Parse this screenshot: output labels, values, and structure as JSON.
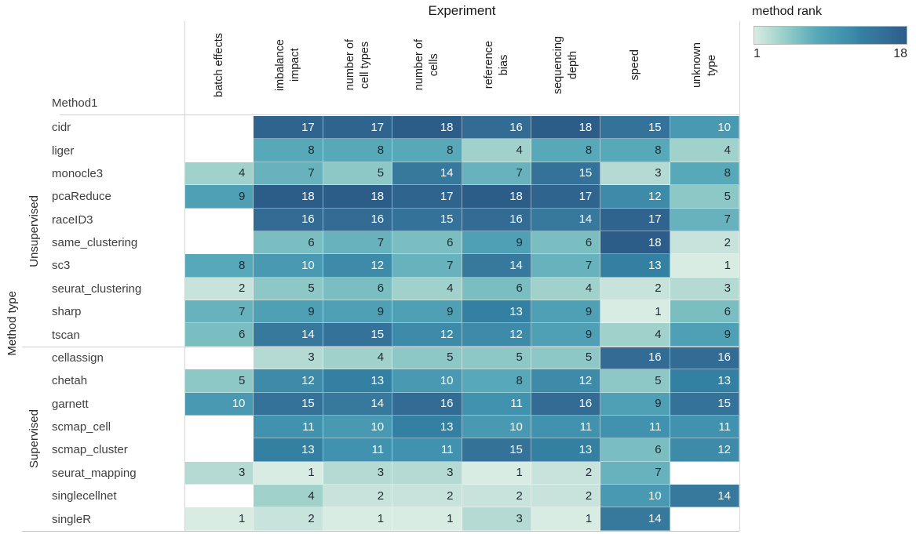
{
  "title": "Experiment",
  "axis": {
    "row_header": "Method1",
    "row_axis_title": "Method type"
  },
  "legend": {
    "title": "method rank",
    "min_label": "1",
    "max_label": "18"
  },
  "colors": {
    "palette": [
      "#d8ece3",
      "#c7e3db",
      "#b4dad3",
      "#a0d1cb",
      "#8dc8c6",
      "#7abec1",
      "#67b2bd",
      "#57a8b8",
      "#4fa0b4",
      "#4899b1",
      "#4192ae",
      "#3d8aa9",
      "#3480a2",
      "#36799c",
      "#357299",
      "#326b94",
      "#2f648e",
      "#2c5d89"
    ],
    "blank_cell": "#ffffff",
    "text_dark": "#1f2a33",
    "text_light": "#fafdfd",
    "light_text_threshold": 10,
    "grid_line": "#cfcfcf"
  },
  "chart_data": {
    "type": "heatmap",
    "title": "Experiment",
    "legend_title": "method rank",
    "value_range": [
      1,
      18
    ],
    "legend_ticks": [
      "1",
      "18"
    ],
    "columns": [
      {
        "name": "batch effects",
        "lines": [
          "batch effects"
        ]
      },
      {
        "name": "imbalance impact",
        "lines": [
          "imbalance",
          "impact"
        ]
      },
      {
        "name": "number of cell types",
        "lines": [
          "number of",
          "cell types"
        ]
      },
      {
        "name": "number of cells",
        "lines": [
          "number of",
          "cells"
        ]
      },
      {
        "name": "reference bias",
        "lines": [
          "reference",
          "bias"
        ]
      },
      {
        "name": "sequencing depth",
        "lines": [
          "sequencing",
          "depth"
        ]
      },
      {
        "name": "speed",
        "lines": [
          "speed"
        ]
      },
      {
        "name": "unknown type",
        "lines": [
          "unknown",
          "type"
        ]
      }
    ],
    "row_groups": [
      {
        "label": "Unsupervised",
        "rows": [
          {
            "label": "cidr",
            "values": [
              null,
              17,
              17,
              18,
              16,
              18,
              15,
              10
            ]
          },
          {
            "label": "liger",
            "values": [
              null,
              8,
              8,
              8,
              4,
              8,
              8,
              4
            ]
          },
          {
            "label": "monocle3",
            "values": [
              4,
              7,
              5,
              14,
              7,
              15,
              3,
              8
            ]
          },
          {
            "label": "pcaReduce",
            "values": [
              9,
              18,
              18,
              17,
              18,
              17,
              12,
              5
            ]
          },
          {
            "label": "raceID3",
            "values": [
              null,
              16,
              16,
              15,
              16,
              14,
              17,
              7
            ]
          },
          {
            "label": "same_clustering",
            "values": [
              null,
              6,
              7,
              6,
              9,
              6,
              18,
              2
            ]
          },
          {
            "label": "sc3",
            "values": [
              8,
              10,
              12,
              7,
              14,
              7,
              13,
              1
            ]
          },
          {
            "label": "seurat_clustering",
            "values": [
              2,
              5,
              6,
              4,
              6,
              4,
              2,
              3
            ]
          },
          {
            "label": "sharp",
            "values": [
              7,
              9,
              9,
              9,
              13,
              9,
              1,
              6
            ]
          },
          {
            "label": "tscan",
            "values": [
              6,
              14,
              15,
              12,
              12,
              9,
              4,
              9
            ]
          }
        ]
      },
      {
        "label": "Supervised",
        "rows": [
          {
            "label": "cellassign",
            "values": [
              null,
              3,
              4,
              5,
              5,
              5,
              16,
              16
            ]
          },
          {
            "label": "chetah",
            "values": [
              5,
              12,
              13,
              10,
              8,
              12,
              5,
              13
            ]
          },
          {
            "label": "garnett",
            "values": [
              10,
              15,
              14,
              16,
              11,
              16,
              9,
              15
            ]
          },
          {
            "label": "scmap_cell",
            "values": [
              null,
              11,
              10,
              13,
              10,
              11,
              11,
              11
            ]
          },
          {
            "label": "scmap_cluster",
            "values": [
              null,
              13,
              11,
              11,
              15,
              13,
              6,
              12
            ]
          },
          {
            "label": "seurat_mapping",
            "values": [
              3,
              1,
              3,
              3,
              1,
              2,
              7,
              null
            ]
          },
          {
            "label": "singlecellnet",
            "values": [
              null,
              4,
              2,
              2,
              2,
              2,
              10,
              14
            ]
          },
          {
            "label": "singleR",
            "values": [
              1,
              2,
              1,
              1,
              3,
              1,
              14,
              null
            ]
          }
        ]
      }
    ]
  }
}
